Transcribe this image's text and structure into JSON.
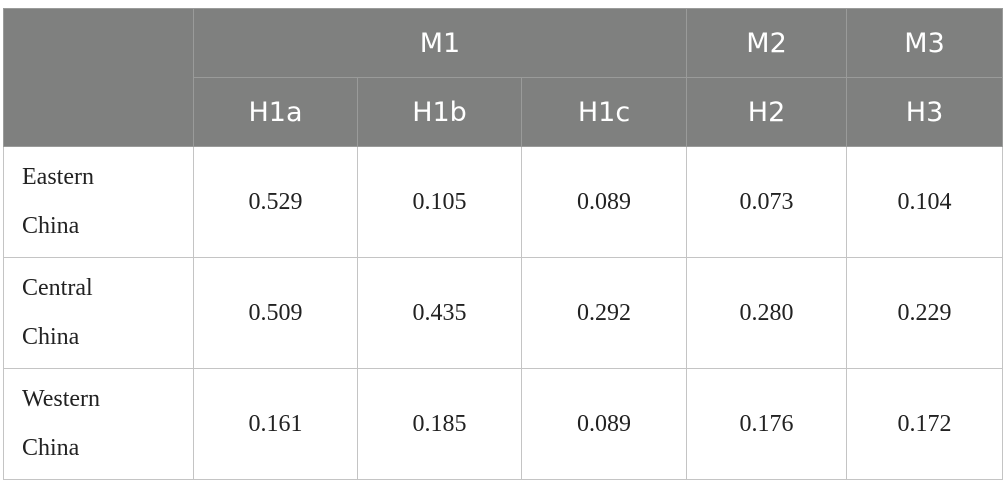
{
  "table": {
    "header": {
      "groups": [
        "M1",
        "M2",
        "M3"
      ],
      "columns": [
        "H1a",
        "H1b",
        "H1c",
        "H2",
        "H3"
      ]
    },
    "rows": [
      [
        "Eastern China",
        "0.529",
        "0.105",
        "0.089",
        "0.073",
        "0.104"
      ],
      [
        "Central China",
        "0.509",
        "0.435",
        "0.292",
        "0.280",
        "0.229"
      ],
      [
        "Western China",
        "0.161",
        "0.185",
        "0.089",
        "0.176",
        "0.172"
      ]
    ]
  }
}
